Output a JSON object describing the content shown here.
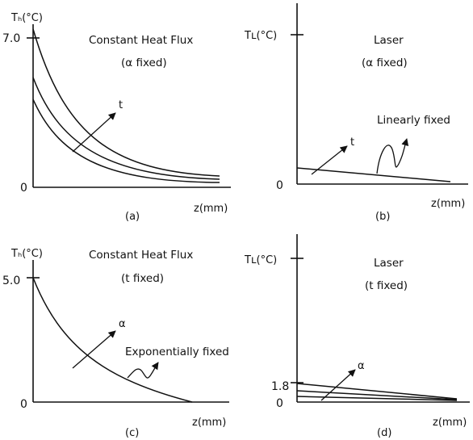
{
  "panels": {
    "a": {
      "ylabel": "Tₕ(°C)",
      "xlabel": "z(mm)",
      "y_tick": "7.0",
      "zero": "0",
      "title": "Constant Heat Flux",
      "subtitle": "(α fixed)",
      "param": "t",
      "caption": "(a)"
    },
    "b": {
      "ylabel": "Tʟ(°C)",
      "xlabel": "z(mm)",
      "zero": "0",
      "title": "Laser",
      "subtitle": "(α fixed)",
      "param": "t",
      "note": "Linearly fixed",
      "caption": "(b)"
    },
    "c": {
      "ylabel": "Tₕ(°C)",
      "xlabel": "z(mm)",
      "y_tick": "5.0",
      "zero": "0",
      "title": "Constant Heat Flux",
      "subtitle": "(t fixed)",
      "param": "α",
      "note": "Exponentially fixed",
      "caption": "(c)"
    },
    "d": {
      "ylabel": "Tʟ(°C)",
      "xlabel": "z(mm)",
      "y_tick": "1.8",
      "zero": "0",
      "title": "Laser",
      "subtitle": "(t fixed)",
      "param": "α",
      "caption": "(d)"
    }
  }
}
